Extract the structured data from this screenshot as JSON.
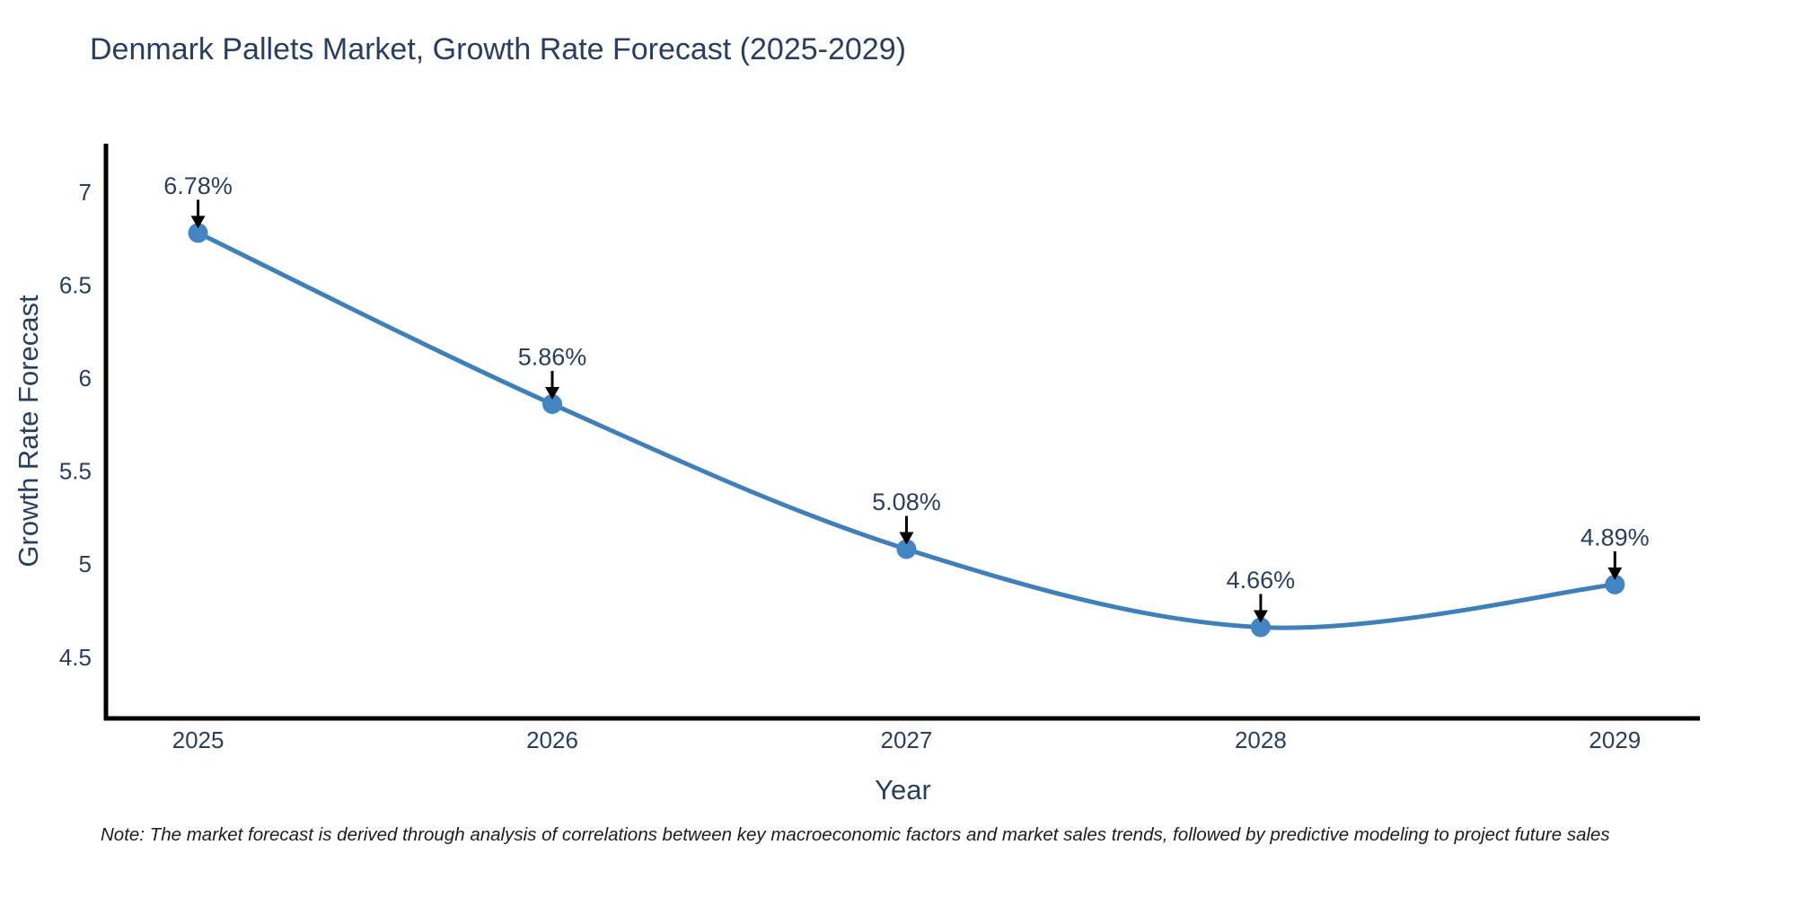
{
  "title": "Denmark Pallets Market, Growth Rate Forecast (2025-2029)",
  "footnote": "Note: The market forecast is derived through analysis of correlations between key macroeconomic factors and market sales trends, followed by predictive modeling to project future sales",
  "chart_data": {
    "type": "line",
    "title": "Denmark Pallets Market, Growth Rate Forecast (2025-2029)",
    "xlabel": "Year",
    "ylabel": "Growth Rate Forecast",
    "x": [
      2025,
      2026,
      2027,
      2028,
      2029
    ],
    "xtick_labels": [
      "2025",
      "2026",
      "2027",
      "2028",
      "2029"
    ],
    "series": [
      {
        "name": "Growth Rate Forecast",
        "values": [
          6.78,
          5.86,
          5.08,
          4.66,
          4.89
        ]
      }
    ],
    "point_labels": [
      "6.78%",
      "5.86%",
      "5.08%",
      "4.66%",
      "4.89%"
    ],
    "yticks": [
      4.5,
      5,
      5.5,
      6,
      6.5,
      7
    ],
    "ytick_labels": [
      "4.5",
      "5",
      "5.5",
      "6",
      "6.5",
      "7"
    ],
    "ylim": [
      4.17,
      7.26
    ],
    "xlim": [
      2024.74,
      2029.24
    ],
    "grid": false,
    "legend": "none",
    "line_shape": "spline",
    "annotation_arrows": true,
    "colors": {
      "line": "#3f7fba",
      "marker": "#4285c2",
      "label_text": "#2a3f5f",
      "tick_text": "#2a3f5f",
      "axis_line": "#000000",
      "arrow": "#000000",
      "title_text": "#2a3f5f",
      "note_text": "#1c1c1c",
      "background": "#ffffff"
    }
  }
}
